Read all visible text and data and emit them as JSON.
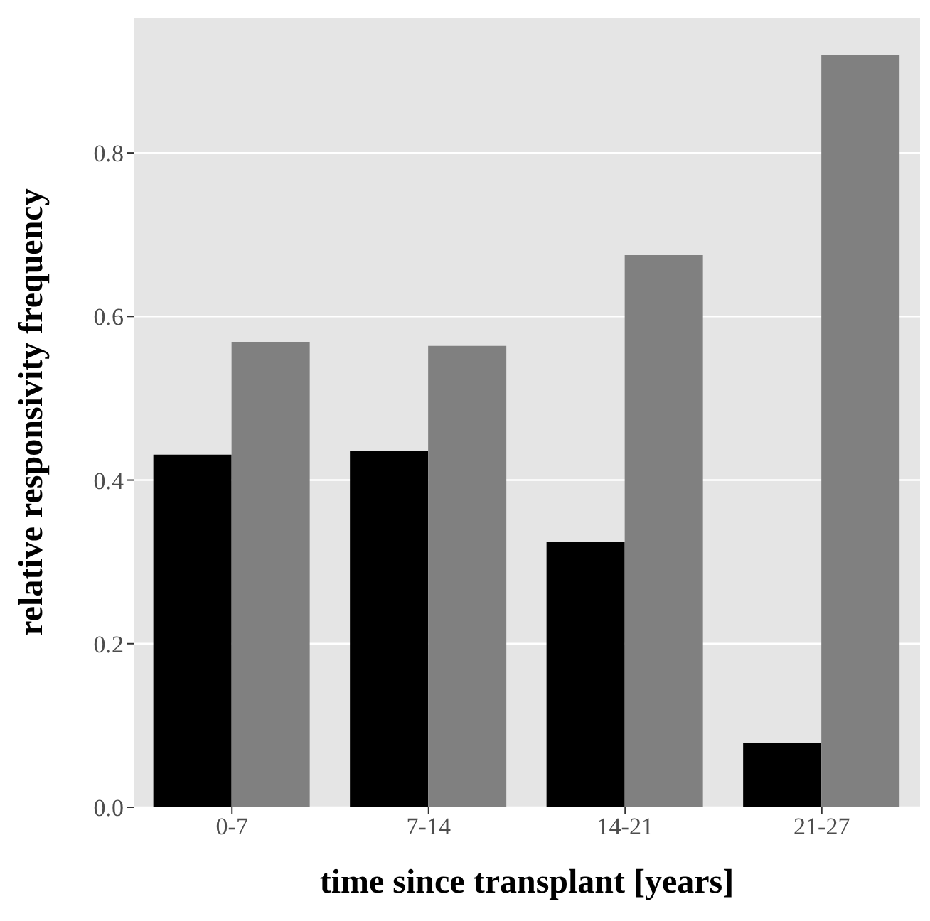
{
  "chart_data": {
    "type": "bar",
    "xlabel": "time since transplant [years]",
    "ylabel": "relative responsivity frequency",
    "categories": [
      "0-7",
      "7-14",
      "14-21",
      "21-27"
    ],
    "series": [
      {
        "color": "#000000",
        "values": [
          0.431,
          0.436,
          0.325,
          0.079
        ]
      },
      {
        "color": "#808080",
        "values": [
          0.569,
          0.564,
          0.675,
          0.92
        ]
      }
    ],
    "ylim": [
      0,
      0.966
    ],
    "yticks": [
      {
        "value": 0,
        "label": "0.0"
      },
      {
        "value": 0.2,
        "label": "0.2"
      },
      {
        "value": 0.4,
        "label": "0.4"
      },
      {
        "value": 0.6,
        "label": "0.6"
      },
      {
        "value": 0.8,
        "label": "0.8"
      }
    ],
    "grid": "y",
    "legend": false
  }
}
